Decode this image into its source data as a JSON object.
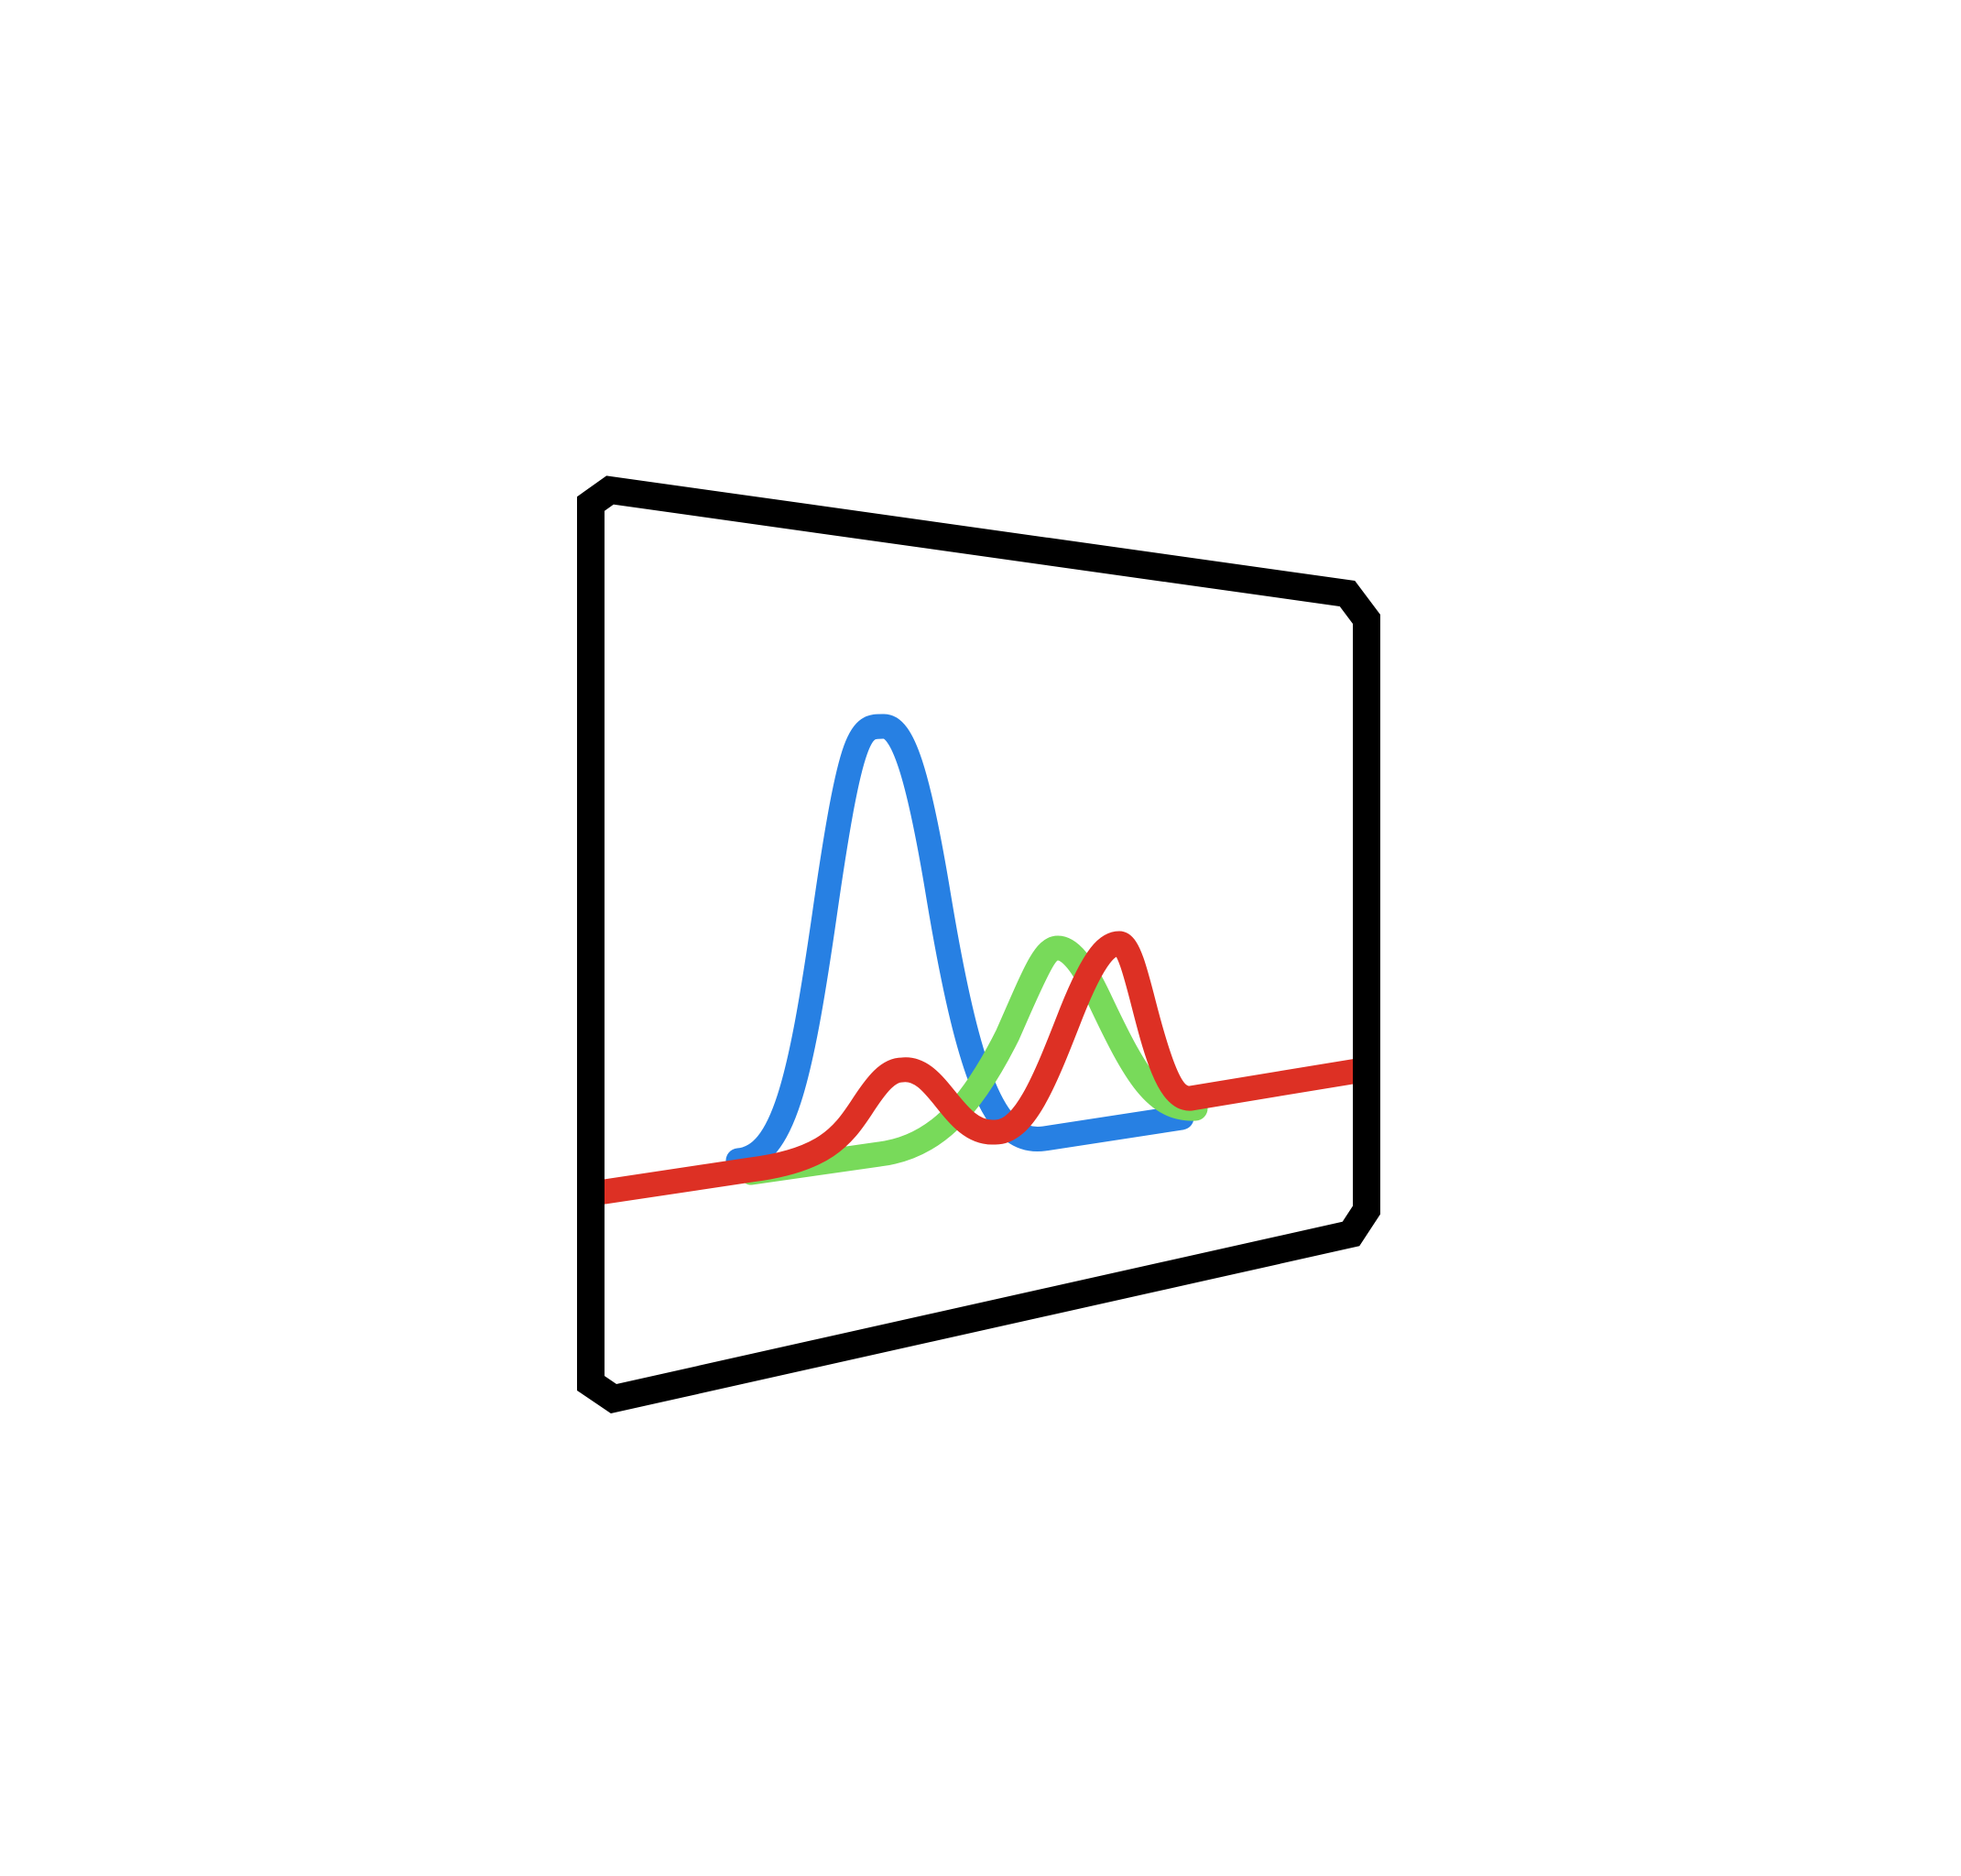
{
  "icon": {
    "name": "spectrum-monitor-icon",
    "colors": {
      "background": "#ffffff",
      "frame": "#000000",
      "blue": "#2780e3",
      "green": "#78da5a",
      "red": "#dd3024"
    }
  }
}
